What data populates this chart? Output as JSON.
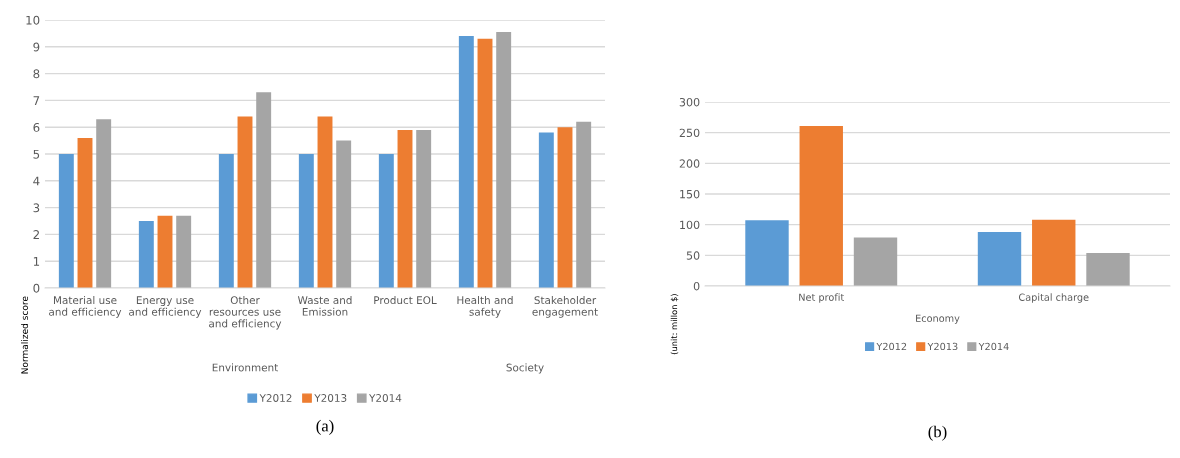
{
  "chart_data": [
    {
      "type": "bar",
      "title": "(a)",
      "ylabel": "Normalized score",
      "categories": [
        "Material use\nand efficiency",
        "Energy use\nand efficiency",
        "Other\nresources use\nand efficiency",
        "Waste and\nEmission",
        "Product EOL",
        "Health and\nsafety",
        "Stakeholder\nengagement"
      ],
      "series": [
        {
          "name": "Y2012",
          "color": "#5b9bd5",
          "values": [
            5,
            2.5,
            5,
            5,
            5,
            9.4,
            5.8
          ]
        },
        {
          "name": "Y2013",
          "color": "#ed7d31",
          "values": [
            5.6,
            2.7,
            6.4,
            6.4,
            5.9,
            9.3,
            6.0
          ]
        },
        {
          "name": "Y2014",
          "color": "#a5a5a5",
          "values": [
            6.3,
            2.7,
            7.3,
            5.5,
            5.9,
            9.55,
            6.2
          ]
        }
      ],
      "ylim": [
        0,
        10
      ],
      "yticks": [
        0,
        1,
        2,
        3,
        4,
        5,
        6,
        7,
        8,
        9,
        10
      ],
      "annotations": [
        "Environment",
        "Society"
      ],
      "grid": "y",
      "legend": "bottom"
    },
    {
      "type": "bar",
      "title": "(b)",
      "ylabel": "(unit: millon $)",
      "categories": [
        "Net profit",
        "Capital charge"
      ],
      "series": [
        {
          "name": "Y2012",
          "color": "#5b9bd5",
          "values": [
            107,
            88
          ]
        },
        {
          "name": "Y2013",
          "color": "#ed7d31",
          "values": [
            261,
            108
          ]
        },
        {
          "name": "Y2014",
          "color": "#a5a5a5",
          "values": [
            79,
            54
          ]
        }
      ],
      "ylim": [
        0,
        300
      ],
      "yticks": [
        0,
        50,
        100,
        150,
        200,
        250,
        300
      ],
      "annotations": [
        "Economy"
      ],
      "grid": "y",
      "legend": "bottom"
    }
  ]
}
